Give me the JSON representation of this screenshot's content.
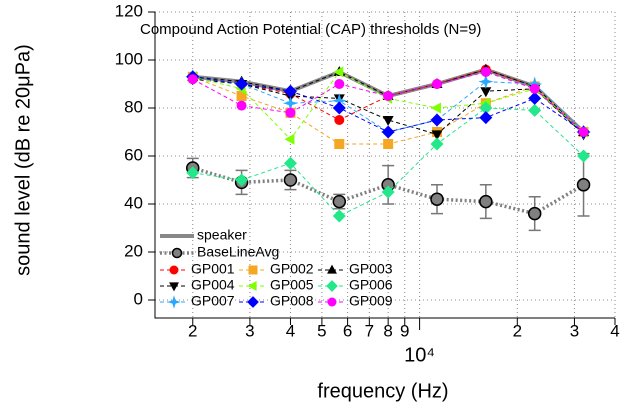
{
  "chart_data": {
    "type": "line",
    "title": "Compound Action Potential (CAP) thresholds (N=9)",
    "x_label": "frequency (Hz)",
    "y_label": "sound level (dB re 20μPa)",
    "x": [
      2000,
      2828,
      4000,
      5657,
      8000,
      11314,
      16000,
      22627,
      32000
    ],
    "xlim": [
      1530,
      40000
    ],
    "x_log": true,
    "xticks": [
      {
        "value": 2000,
        "label": "2"
      },
      {
        "value": 3000,
        "label": "3"
      },
      {
        "value": 4000,
        "label": "4"
      },
      {
        "value": 5000,
        "label": "5"
      },
      {
        "value": 6000,
        "label": "6"
      },
      {
        "value": 7000,
        "label": "7"
      },
      {
        "value": 8000,
        "label": "8"
      },
      {
        "value": 9000,
        "label": "9"
      },
      {
        "value": 10000,
        "label": "10⁴"
      },
      {
        "value": 20000,
        "label": "2"
      },
      {
        "value": 30000,
        "label": "3"
      },
      {
        "value": 40000,
        "label": "4"
      }
    ],
    "ylim": [
      -7.5,
      120
    ],
    "yticks": [
      0,
      20,
      40,
      60,
      80,
      100,
      120
    ],
    "grid": true,
    "legend": "lower left",
    "series": [
      {
        "name": "speaker",
        "color": "#888888",
        "style": "solid",
        "width": 4,
        "marker": "none",
        "values": [
          93,
          91,
          87,
          95,
          85,
          90,
          96,
          89,
          70
        ]
      },
      {
        "name": "BaseLineAvg",
        "color": "#808080",
        "style": "dotted",
        "width": 3.5,
        "marker": "circle",
        "values": [
          55,
          49,
          50,
          41,
          48,
          42,
          41,
          36,
          48
        ],
        "errors": [
          4,
          5,
          4,
          3,
          8,
          6,
          7,
          7,
          13
        ]
      },
      {
        "name": "GP001",
        "color": "#ff0000",
        "style": "dashed",
        "width": 1,
        "marker": "circle",
        "values": [
          93,
          90,
          86,
          75,
          85,
          90,
          96,
          89,
          70
        ]
      },
      {
        "name": "GP002",
        "color": "#f5a623",
        "style": "dashed",
        "width": 1,
        "marker": "square",
        "values": [
          93,
          85,
          78,
          65,
          65,
          70,
          82,
          89,
          70
        ]
      },
      {
        "name": "GP003",
        "color": "#000000",
        "style": "dashed",
        "width": 1,
        "marker": "triangle-up",
        "values": [
          93,
          91,
          87,
          95,
          85,
          90,
          96,
          89,
          70
        ]
      },
      {
        "name": "GP004",
        "color": "#000000",
        "style": "dashed",
        "width": 1,
        "marker": "triangle-down",
        "values": [
          92,
          90,
          85,
          84,
          75,
          69,
          87,
          88,
          69
        ]
      },
      {
        "name": "GP005",
        "color": "#7fff00",
        "style": "dashed",
        "width": 1,
        "marker": "triangle-left",
        "values": [
          93,
          88,
          67,
          95,
          84,
          80,
          82,
          88,
          70
        ]
      },
      {
        "name": "GP006",
        "color": "#22e88a",
        "style": "dashed",
        "width": 1,
        "marker": "diamond",
        "values": [
          53,
          50,
          57,
          35,
          45,
          65,
          80,
          79,
          60
        ]
      },
      {
        "name": "GP007",
        "color": "#2aa8ff",
        "style": "dashed",
        "width": 1,
        "marker": "star",
        "values": [
          93,
          90,
          82,
          83,
          70,
          75,
          91,
          90,
          70
        ]
      },
      {
        "name": "GP008",
        "color": "#0000ff",
        "style": "dashed",
        "width": 1,
        "marker": "diamond",
        "values": [
          93,
          90,
          87,
          80,
          70,
          75,
          76,
          84,
          70
        ]
      },
      {
        "name": "GP009",
        "color": "#ff00ff",
        "style": "dashed",
        "width": 1,
        "marker": "circle",
        "values": [
          92,
          81,
          78,
          90,
          85,
          90,
          95,
          88,
          70
        ]
      }
    ]
  }
}
